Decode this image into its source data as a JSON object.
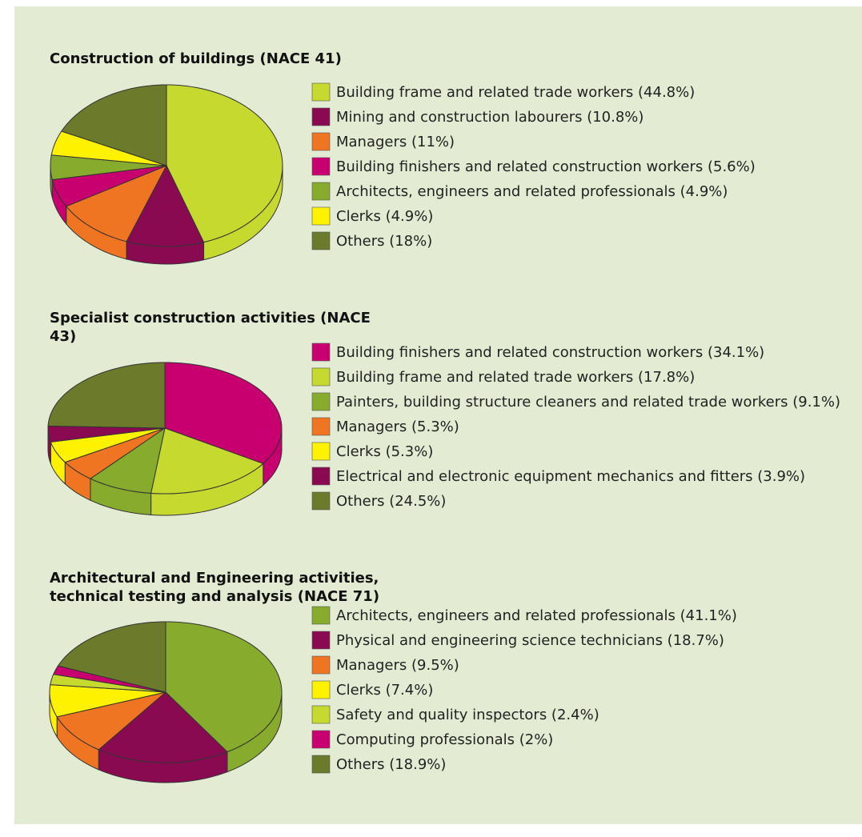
{
  "chart_data": [
    {
      "type": "pie",
      "title": "Construction of buildings (NACE 41)",
      "categories": [
        "Building frame and related trade workers (44.8%)",
        "Mining and construction labourers (10.8%)",
        "Managers (11%)",
        "Building finishers and related construction workers (5.6%)",
        "Architects, engineers and related professionals (4.9%)",
        "Clerks (4.9%)",
        "Others (18%)"
      ],
      "values": [
        44.8,
        10.8,
        11,
        5.6,
        4.9,
        4.9,
        18
      ],
      "colors": [
        "#c5d92e",
        "#8a0a52",
        "#f07522",
        "#c8006f",
        "#86ab2d",
        "#fff200",
        "#6b7a2b"
      ]
    },
    {
      "type": "pie",
      "title": "Specialist construction activities (NACE 43)",
      "categories": [
        "Building finishers and related construction workers (34.1%)",
        "Building frame and related trade workers (17.8%)",
        "Painters, building structure cleaners and related trade workers (9.1%)",
        "Managers (5.3%)",
        "Clerks (5.3%)",
        "Electrical and electronic equipment mechanics and fitters (3.9%)",
        "Others (24.5%)"
      ],
      "values": [
        34.1,
        17.8,
        9.1,
        5.3,
        5.3,
        3.9,
        24.5
      ],
      "colors": [
        "#c8006f",
        "#c5d92e",
        "#86ab2d",
        "#f07522",
        "#fff200",
        "#8a0a52",
        "#6b7a2b"
      ]
    },
    {
      "type": "pie",
      "title": "Architectural and Engineering activities, technical testing and analysis (NACE 71)",
      "categories": [
        "Architects, engineers and related professionals (41.1%)",
        "Physical and engineering science technicians (18.7%)",
        "Managers (9.5%)",
        "Clerks (7.4%)",
        "Safety and quality inspectors (2.4%)",
        "Computing professionals (2%)",
        "Others (18.9%)"
      ],
      "values": [
        41.1,
        18.7,
        9.5,
        7.4,
        2.4,
        2,
        18.9
      ],
      "colors": [
        "#86ab2d",
        "#8a0a52",
        "#f07522",
        "#fff200",
        "#c5d92e",
        "#c8006f",
        "#6b7a2b"
      ]
    }
  ]
}
